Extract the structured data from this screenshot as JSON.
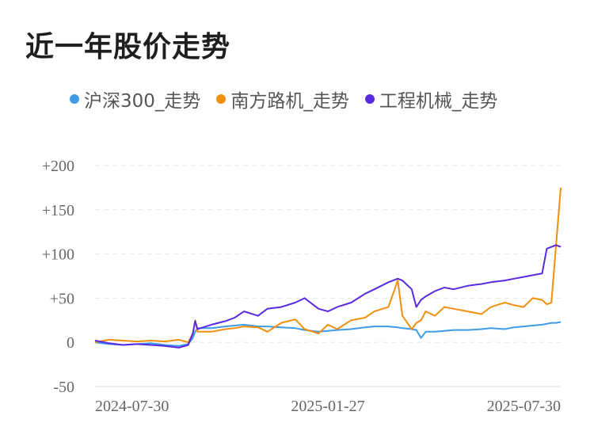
{
  "chart_data": {
    "type": "line",
    "title": "近一年股价走势",
    "ylim": [
      -50,
      200
    ],
    "yticks": [
      "+200",
      "+150",
      "+100",
      "+50",
      "0",
      "-50"
    ],
    "ytick_values": [
      200,
      150,
      100,
      50,
      0,
      -50
    ],
    "xticks": [
      "2024-07-30",
      "2025-01-27",
      "2025-07-30"
    ],
    "grid": true,
    "legend_position": "top",
    "x": [
      0,
      0.03,
      0.06,
      0.09,
      0.12,
      0.15,
      0.18,
      0.2,
      0.21,
      0.215,
      0.22,
      0.25,
      0.28,
      0.3,
      0.32,
      0.35,
      0.37,
      0.4,
      0.43,
      0.45,
      0.48,
      0.5,
      0.52,
      0.55,
      0.58,
      0.6,
      0.63,
      0.65,
      0.66,
      0.68,
      0.69,
      0.7,
      0.71,
      0.73,
      0.75,
      0.77,
      0.8,
      0.83,
      0.85,
      0.88,
      0.9,
      0.92,
      0.94,
      0.96,
      0.97,
      0.98,
      0.99,
      1.0
    ],
    "series": [
      {
        "name": "沪深300_走势",
        "color": "#3f9ae8",
        "values": [
          0,
          -2,
          -3,
          -2,
          -1,
          -3,
          -4,
          -2,
          5,
          12,
          16,
          16,
          18,
          19,
          20,
          18,
          18,
          17,
          16,
          14,
          12,
          13,
          14,
          15,
          17,
          18,
          18,
          17,
          16,
          15,
          14,
          5,
          12,
          12,
          13,
          14,
          14,
          15,
          16,
          15,
          17,
          18,
          19,
          20,
          21,
          22,
          22,
          23
        ]
      },
      {
        "name": "南方路机_走势",
        "color": "#f0900e",
        "values": [
          0,
          3,
          2,
          1,
          2,
          1,
          3,
          0,
          10,
          25,
          12,
          12,
          15,
          16,
          18,
          17,
          12,
          22,
          26,
          15,
          10,
          20,
          15,
          25,
          28,
          35,
          40,
          70,
          30,
          15,
          22,
          25,
          35,
          30,
          40,
          38,
          35,
          32,
          40,
          45,
          42,
          40,
          50,
          48,
          43,
          45,
          110,
          175
        ]
      },
      {
        "name": "工程机械_走势",
        "color": "#5a2ae0",
        "values": [
          2,
          -1,
          -3,
          -2,
          -3,
          -4,
          -6,
          -3,
          10,
          24,
          15,
          20,
          24,
          28,
          35,
          30,
          38,
          40,
          45,
          50,
          38,
          35,
          40,
          45,
          55,
          60,
          68,
          72,
          70,
          60,
          40,
          48,
          52,
          58,
          62,
          60,
          64,
          66,
          68,
          70,
          72,
          74,
          76,
          78,
          106,
          108,
          110,
          108
        ]
      }
    ]
  }
}
